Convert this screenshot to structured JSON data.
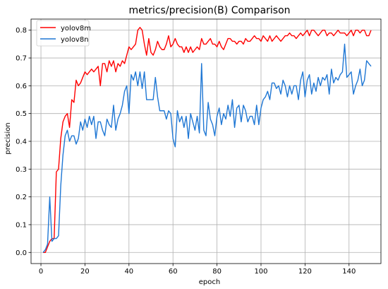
{
  "chart_data": {
    "type": "line",
    "title": "metrics/precision(B) Comparison",
    "xlabel": "epoch",
    "ylabel": "precision",
    "xlim": [
      -4.5,
      154.5
    ],
    "ylim": [
      -0.04,
      0.84
    ],
    "xticks": [
      0,
      20,
      40,
      60,
      80,
      100,
      120,
      140
    ],
    "yticks": [
      0.0,
      0.1,
      0.2,
      0.3,
      0.4,
      0.5,
      0.6,
      0.7,
      0.8
    ],
    "xtick_labels": [
      "0",
      "20",
      "40",
      "60",
      "80",
      "100",
      "120",
      "140"
    ],
    "ytick_labels": [
      "0.0",
      "0.1",
      "0.2",
      "0.3",
      "0.4",
      "0.5",
      "0.6",
      "0.7",
      "0.8"
    ],
    "grid": true,
    "legend_position": "top-left",
    "series": [
      {
        "name": "yolov8m",
        "color": "#ff0000",
        "x": [
          1,
          2,
          3,
          4,
          5,
          6,
          7,
          8,
          9,
          10,
          11,
          12,
          13,
          14,
          15,
          16,
          17,
          18,
          19,
          20,
          21,
          22,
          23,
          24,
          25,
          26,
          27,
          28,
          29,
          30,
          31,
          32,
          33,
          34,
          35,
          36,
          37,
          38,
          39,
          40,
          41,
          42,
          43,
          44,
          45,
          46,
          47,
          48,
          49,
          50,
          51,
          52,
          53,
          54,
          55,
          56,
          57,
          58,
          59,
          60,
          61,
          62,
          63,
          64,
          65,
          66,
          67,
          68,
          69,
          70,
          71,
          72,
          73,
          74,
          75,
          76,
          77,
          78,
          79,
          80,
          81,
          82,
          83,
          84,
          85,
          86,
          87,
          88,
          89,
          90,
          91,
          92,
          93,
          94,
          95,
          96,
          97,
          98,
          99,
          100,
          101,
          102,
          103,
          104,
          105,
          106,
          107,
          108,
          109,
          110,
          111,
          112,
          113,
          114,
          115,
          116,
          117,
          118,
          119,
          120,
          121,
          122,
          123,
          124,
          125,
          126,
          127,
          128,
          129,
          130,
          131,
          132,
          133,
          134,
          135,
          136,
          137,
          138,
          139,
          140,
          141,
          142,
          143,
          144,
          145,
          146,
          147,
          148,
          149,
          150
        ],
        "y": [
          0.0,
          0.0,
          0.02,
          0.04,
          0.05,
          0.05,
          0.29,
          0.3,
          0.41,
          0.47,
          0.49,
          0.5,
          0.45,
          0.55,
          0.54,
          0.62,
          0.6,
          0.61,
          0.63,
          0.65,
          0.64,
          0.65,
          0.66,
          0.65,
          0.66,
          0.67,
          0.6,
          0.68,
          0.68,
          0.65,
          0.69,
          0.67,
          0.69,
          0.65,
          0.68,
          0.67,
          0.69,
          0.68,
          0.71,
          0.74,
          0.73,
          0.74,
          0.75,
          0.8,
          0.81,
          0.8,
          0.75,
          0.71,
          0.77,
          0.72,
          0.71,
          0.73,
          0.76,
          0.74,
          0.73,
          0.73,
          0.75,
          0.78,
          0.74,
          0.75,
          0.77,
          0.75,
          0.74,
          0.74,
          0.72,
          0.74,
          0.72,
          0.74,
          0.72,
          0.73,
          0.74,
          0.73,
          0.77,
          0.75,
          0.75,
          0.76,
          0.77,
          0.75,
          0.75,
          0.74,
          0.76,
          0.74,
          0.73,
          0.75,
          0.77,
          0.77,
          0.76,
          0.76,
          0.75,
          0.76,
          0.76,
          0.75,
          0.77,
          0.76,
          0.76,
          0.77,
          0.78,
          0.77,
          0.77,
          0.76,
          0.78,
          0.77,
          0.76,
          0.78,
          0.76,
          0.77,
          0.78,
          0.77,
          0.76,
          0.77,
          0.78,
          0.78,
          0.79,
          0.78,
          0.78,
          0.77,
          0.78,
          0.79,
          0.78,
          0.79,
          0.8,
          0.78,
          0.8,
          0.8,
          0.79,
          0.78,
          0.79,
          0.8,
          0.8,
          0.78,
          0.79,
          0.79,
          0.78,
          0.79,
          0.8,
          0.79,
          0.79,
          0.79,
          0.78,
          0.79,
          0.8,
          0.78,
          0.8,
          0.8,
          0.79,
          0.8,
          0.8,
          0.78,
          0.78,
          0.8
        ]
      },
      {
        "name": "yolov8n",
        "color": "#1f77d4",
        "x": [
          1,
          2,
          3,
          4,
          5,
          6,
          7,
          8,
          9,
          10,
          11,
          12,
          13,
          14,
          15,
          16,
          17,
          18,
          19,
          20,
          21,
          22,
          23,
          24,
          25,
          26,
          27,
          28,
          29,
          30,
          31,
          32,
          33,
          34,
          35,
          36,
          37,
          38,
          39,
          40,
          41,
          42,
          43,
          44,
          45,
          46,
          47,
          48,
          49,
          50,
          51,
          52,
          53,
          54,
          55,
          56,
          57,
          58,
          59,
          60,
          61,
          62,
          63,
          64,
          65,
          66,
          67,
          68,
          69,
          70,
          71,
          72,
          73,
          74,
          75,
          76,
          77,
          78,
          79,
          80,
          81,
          82,
          83,
          84,
          85,
          86,
          87,
          88,
          89,
          90,
          91,
          92,
          93,
          94,
          95,
          96,
          97,
          98,
          99,
          100,
          101,
          102,
          103,
          104,
          105,
          106,
          107,
          108,
          109,
          110,
          111,
          112,
          113,
          114,
          115,
          116,
          117,
          118,
          119,
          120,
          121,
          122,
          123,
          124,
          125,
          126,
          127,
          128,
          129,
          130,
          131,
          132,
          133,
          134,
          135,
          136,
          137,
          138,
          139,
          140,
          141,
          142,
          143,
          144,
          145,
          146,
          147,
          148,
          149,
          150
        ],
        "y": [
          0.0,
          0.01,
          0.03,
          0.2,
          0.04,
          0.05,
          0.05,
          0.06,
          0.24,
          0.35,
          0.42,
          0.44,
          0.4,
          0.42,
          0.42,
          0.39,
          0.41,
          0.47,
          0.44,
          0.48,
          0.45,
          0.49,
          0.46,
          0.49,
          0.41,
          0.47,
          0.47,
          0.44,
          0.42,
          0.48,
          0.46,
          0.45,
          0.53,
          0.44,
          0.48,
          0.5,
          0.53,
          0.58,
          0.6,
          0.5,
          0.64,
          0.62,
          0.65,
          0.6,
          0.65,
          0.59,
          0.65,
          0.55,
          0.55,
          0.55,
          0.55,
          0.63,
          0.56,
          0.51,
          0.51,
          0.51,
          0.48,
          0.51,
          0.5,
          0.41,
          0.38,
          0.51,
          0.47,
          0.49,
          0.45,
          0.49,
          0.41,
          0.5,
          0.47,
          0.44,
          0.49,
          0.43,
          0.68,
          0.44,
          0.42,
          0.54,
          0.48,
          0.46,
          0.42,
          0.49,
          0.52,
          0.46,
          0.5,
          0.48,
          0.53,
          0.49,
          0.55,
          0.45,
          0.52,
          0.53,
          0.47,
          0.53,
          0.51,
          0.47,
          0.49,
          0.49,
          0.46,
          0.53,
          0.46,
          0.52,
          0.55,
          0.56,
          0.58,
          0.55,
          0.61,
          0.61,
          0.59,
          0.6,
          0.57,
          0.62,
          0.6,
          0.56,
          0.6,
          0.57,
          0.6,
          0.6,
          0.55,
          0.62,
          0.65,
          0.56,
          0.62,
          0.64,
          0.57,
          0.61,
          0.58,
          0.63,
          0.6,
          0.63,
          0.62,
          0.64,
          0.57,
          0.66,
          0.61,
          0.63,
          0.62,
          0.64,
          0.65,
          0.75,
          0.63,
          0.64,
          0.65,
          0.57,
          0.6,
          0.62,
          0.66,
          0.6,
          0.62,
          0.69,
          0.68,
          0.67
        ]
      }
    ]
  }
}
